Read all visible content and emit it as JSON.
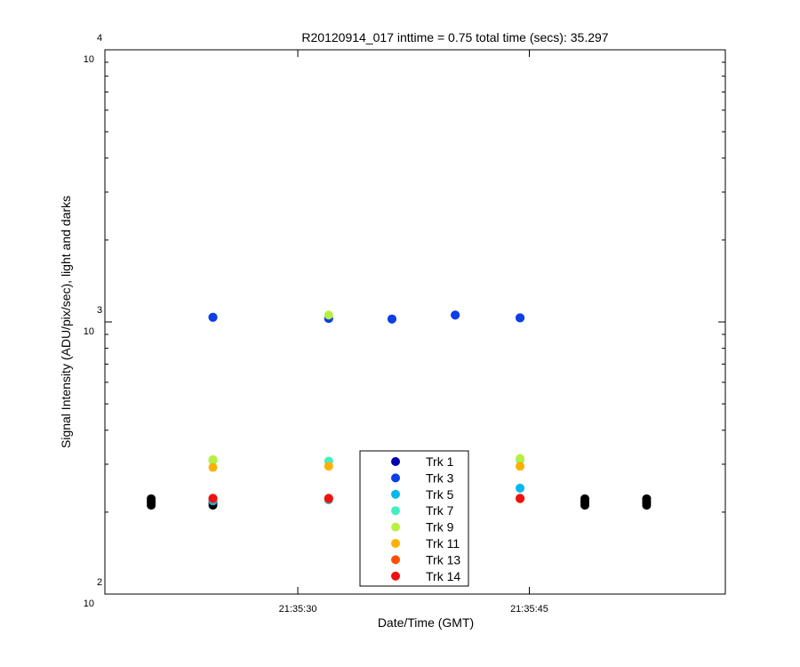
{
  "chart_data": {
    "type": "scatter",
    "title": "R20120914_017 inttime = 0.75 total time (secs): 35.297",
    "xlabel": "Date/Time (GMT)",
    "ylabel": "Signal Intensity (ADU/pix/sec), light and darks",
    "y_scale": "log",
    "ylim": [
      100,
      10000
    ],
    "y_ticks": [
      {
        "base": "10",
        "exp": "2",
        "value": 100
      },
      {
        "base": "10",
        "exp": "3",
        "value": 1000
      },
      {
        "base": "10",
        "exp": "4",
        "value": 10000
      }
    ],
    "x_unit": "seconds after 21:35:00 GMT",
    "xlim": [
      17.5,
      57.7
    ],
    "x_ticks": [
      {
        "label": "21:35:30",
        "value": 30
      },
      {
        "label": "21:35:45",
        "value": 45
      }
    ],
    "grid": false,
    "legend_position": "bottom-center",
    "series": [
      {
        "name": "Trk 1",
        "color": "#0000aa",
        "x": [
          24.5,
          32.0,
          36.1,
          40.2,
          44.4
        ],
        "y": [
          1040,
          1030,
          1025,
          1060,
          1035
        ]
      },
      {
        "name": "Trk 3",
        "color": "#0b3fe8",
        "x": [
          24.5,
          32.0,
          36.1,
          40.2,
          44.4
        ],
        "y": [
          1040,
          1030,
          1025,
          1060,
          1035
        ]
      },
      {
        "name": "Trk 5",
        "color": "#00b8f0",
        "x": [
          24.5,
          32.0,
          44.4
        ],
        "y": [
          220,
          222,
          245
        ]
      },
      {
        "name": "Trk 7",
        "color": "#40f0c0",
        "x": [
          24.5,
          32.0,
          44.4
        ],
        "y": [
          310,
          308,
          312
        ]
      },
      {
        "name": "Trk 9",
        "color": "#b8f040",
        "x": [
          24.5,
          32.0,
          44.4
        ],
        "y": [
          312,
          1060,
          315
        ]
      },
      {
        "name": "Trk 11",
        "color": "#ffb000",
        "x": [
          24.5,
          32.0,
          44.4
        ],
        "y": [
          292,
          295,
          295
        ]
      },
      {
        "name": "Trk 13",
        "color": "#ff5000",
        "x": [
          24.5,
          32.0,
          44.4
        ],
        "y": [
          224,
          224,
          224
        ]
      },
      {
        "name": "Trk 14",
        "color": "#f01010",
        "x": [
          24.5,
          32.0,
          44.4
        ],
        "y": [
          225,
          225,
          225
        ]
      }
    ],
    "dark_points": {
      "color": "#000000",
      "x": [
        20.5,
        24.5,
        48.6,
        52.6
      ],
      "y": [
        212,
        216,
        220,
        224
      ]
    }
  }
}
